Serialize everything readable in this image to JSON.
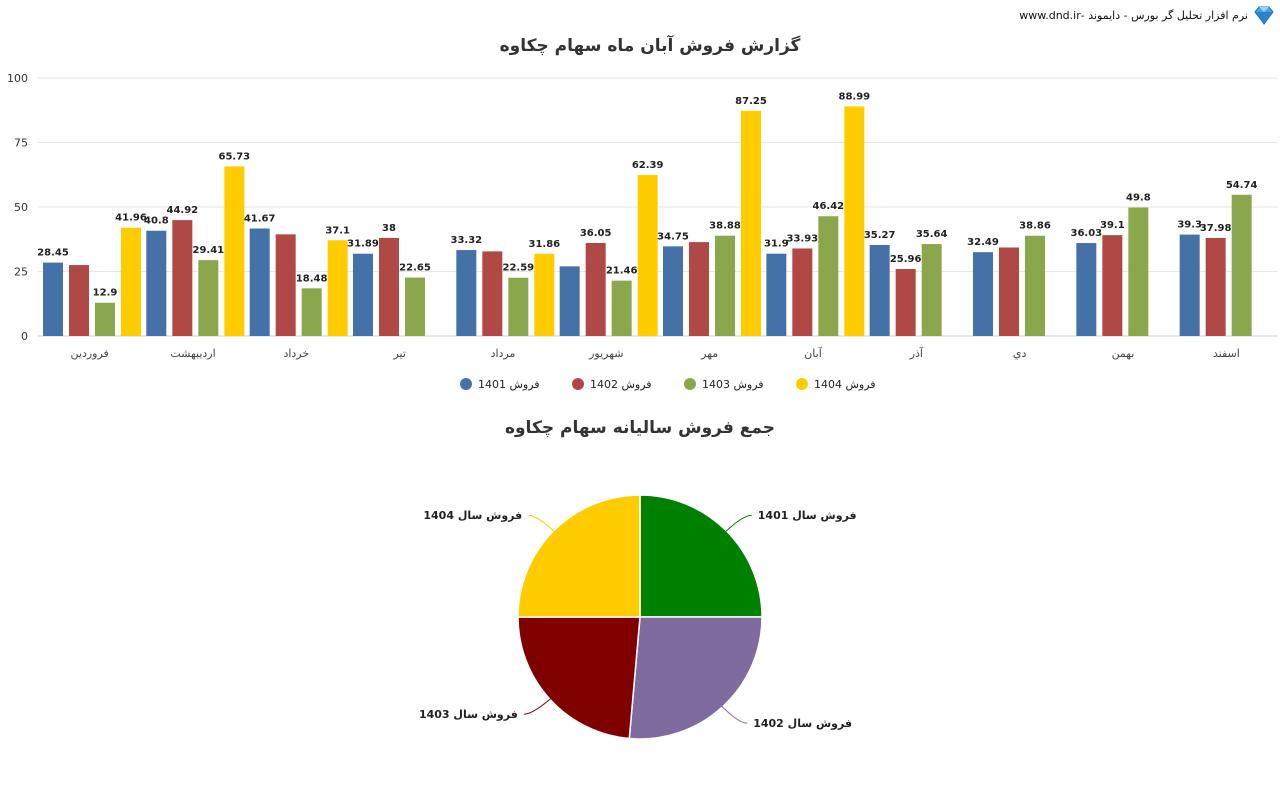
{
  "brand": {
    "text": "نرم افزار تحلیل گر بورس - دایموند -www.dnd.ir",
    "logo_icon": "diamond-icon"
  },
  "colors": {
    "s1401": "#4472a8",
    "s1402": "#b04845",
    "s1403": "#8aa84b",
    "s1404": "#ffcc00",
    "pie1401": "#008000",
    "pie1402": "#7f6b9e",
    "pie1403": "#800000",
    "pie1404": "#ffcc00"
  },
  "chart_data": [
    {
      "type": "bar",
      "title": "گزارش فروش آبان ماه سهام چکاوه",
      "categories": [
        "فروردين",
        "ارديبهشت",
        "خرداد",
        "تير",
        "مرداد",
        "شهريور",
        "مهر",
        "آبان",
        "آذر",
        "دي",
        "بهمن",
        "اسفند"
      ],
      "ylim": [
        0,
        100
      ],
      "yticks": [
        0,
        25,
        50,
        75,
        100
      ],
      "grid": true,
      "legend_position": "bottom",
      "series": [
        {
          "name": "فروش 1401",
          "color": "#4472a8",
          "values": [
            28.45,
            40.8,
            41.67,
            31.89,
            33.32,
            27,
            34.75,
            31.9,
            35.27,
            32.49,
            36.03,
            39.3
          ],
          "labels": [
            "28.45",
            "40.8",
            "41.67",
            "31.89",
            "33.32",
            "",
            "34.75",
            "31.9",
            "35.27",
            "32.49",
            "36.03",
            "39.3"
          ]
        },
        {
          "name": "فروش 1402",
          "color": "#b04845",
          "values": [
            27.5,
            44.92,
            39.4,
            38,
            32.8,
            36.05,
            36.4,
            33.93,
            25.96,
            34.3,
            39.1,
            37.98
          ],
          "labels": [
            "",
            "44.92",
            "",
            "38",
            "",
            "36.05",
            "",
            "33.93",
            "25.96",
            "",
            "39.1",
            "37.98"
          ]
        },
        {
          "name": "فروش 1403",
          "color": "#8aa84b",
          "values": [
            12.9,
            29.41,
            18.48,
            22.65,
            22.59,
            21.46,
            38.88,
            46.42,
            35.64,
            38.86,
            49.8,
            54.74
          ],
          "labels": [
            "12.9",
            "29.41",
            "18.48",
            "22.65",
            "22.59",
            "21.46",
            "38.88",
            "46.42",
            "35.64",
            "38.86",
            "49.8",
            "54.74"
          ]
        },
        {
          "name": "فروش 1404",
          "color": "#ffcc00",
          "values": [
            41.96,
            65.73,
            37.1,
            null,
            31.86,
            62.39,
            87.25,
            88.99,
            null,
            null,
            null,
            null
          ],
          "labels": [
            "41.96",
            "65.73",
            "37.1",
            "",
            "31.86",
            "62.39",
            "87.25",
            "88.99",
            "",
            "",
            "",
            ""
          ]
        }
      ]
    },
    {
      "type": "pie",
      "title": "جمع فروش ساليانه سهام چکاوه",
      "slices": [
        {
          "label": "فروش سال 1401",
          "value": 25.0,
          "color": "#008000"
        },
        {
          "label": "فروش سال 1402",
          "value": 26.4,
          "color": "#7f6b9e"
        },
        {
          "label": "فروش سال 1403",
          "value": 23.6,
          "color": "#800000"
        },
        {
          "label": "فروش سال 1404",
          "value": 25.0,
          "color": "#ffcc00"
        }
      ]
    }
  ]
}
